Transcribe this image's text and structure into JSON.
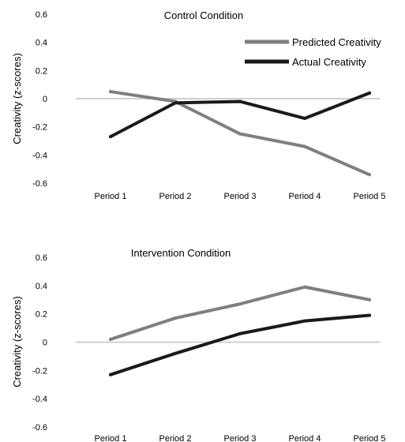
{
  "chart_data": [
    {
      "type": "line",
      "title": "Control Condition",
      "ylabel": "Creativity (z-scores)",
      "xlabel": "",
      "categories": [
        "Period 1",
        "Period 2",
        "Period 3",
        "Period 4",
        "Period 5"
      ],
      "ylim": [
        -0.6,
        0.6
      ],
      "yticks": [
        0.6,
        0.4,
        0.2,
        0,
        -0.2,
        -0.4,
        -0.6
      ],
      "ytick_labels": [
        "0.6",
        "0.4",
        "0.2",
        "0",
        "-0.2",
        "-0.4",
        "-0.6"
      ],
      "grid": false,
      "legend_position": "top-right",
      "series": [
        {
          "name": "Predicted Creativity",
          "color": "#7f7f7f",
          "values": [
            0.05,
            -0.02,
            -0.25,
            -0.34,
            -0.54
          ]
        },
        {
          "name": "Actual Creativity",
          "color": "#1a1a1a",
          "values": [
            -0.27,
            -0.03,
            -0.02,
            -0.14,
            0.04
          ]
        }
      ]
    },
    {
      "type": "line",
      "title": "Intervention Condition",
      "ylabel": "Creativity (z-scores)",
      "xlabel": "",
      "categories": [
        "Period 1",
        "Period 2",
        "Period 3",
        "Period 4",
        "Period 5"
      ],
      "ylim": [
        -0.6,
        0.6
      ],
      "yticks": [
        0.6,
        0.4,
        0.2,
        0,
        -0.2,
        -0.4,
        -0.6
      ],
      "ytick_labels": [
        "0.6",
        "0.4",
        "0.2",
        "0",
        "-0.2",
        "-0.4",
        "-0.6"
      ],
      "grid": false,
      "legend_position": "none",
      "series": [
        {
          "name": "Predicted Creativity",
          "color": "#7f7f7f",
          "values": [
            0.02,
            0.17,
            0.27,
            0.39,
            0.3
          ]
        },
        {
          "name": "Actual Creativity",
          "color": "#1a1a1a",
          "values": [
            -0.23,
            -0.08,
            0.06,
            0.15,
            0.19
          ]
        }
      ]
    }
  ]
}
